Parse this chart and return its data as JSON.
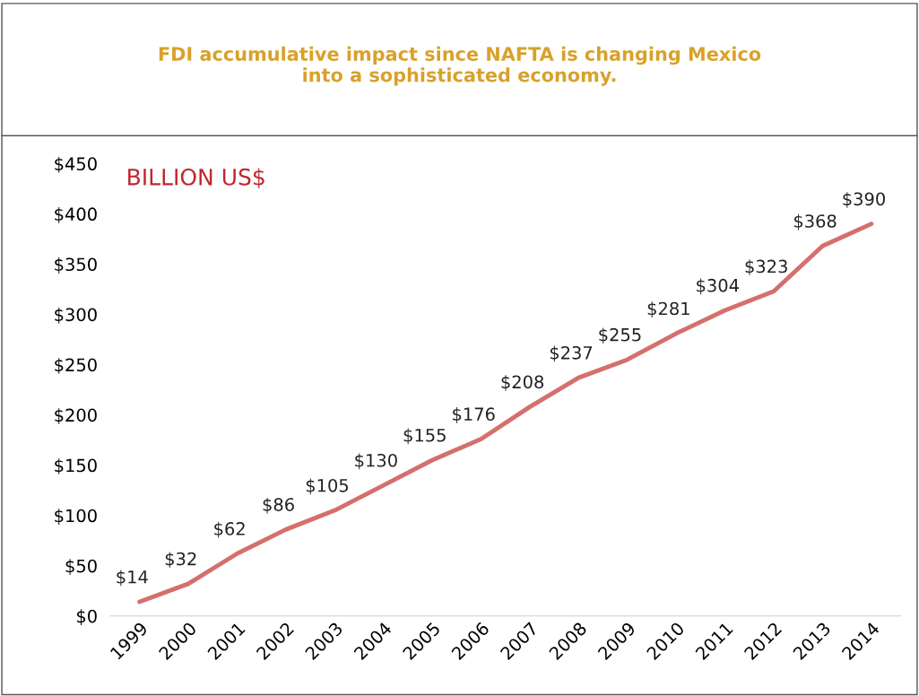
{
  "chart_data": {
    "type": "line",
    "title": "FDI accumulative impact since NAFTA is changing Mexico\ninto a sophisticated economy.",
    "annotations": [
      "BILLION US$"
    ],
    "categories": [
      "1999",
      "2000",
      "2001",
      "2002",
      "2003",
      "2004",
      "2005",
      "2006",
      "2007",
      "2008",
      "2009",
      "2010",
      "2011",
      "2012",
      "2013",
      "2014"
    ],
    "series": [
      {
        "color": "#d4706c",
        "values": [
          14,
          32,
          62,
          86,
          105,
          130,
          155,
          176,
          208,
          237,
          255,
          281,
          304,
          323,
          368,
          390
        ]
      }
    ],
    "value_labels": [
      "$14",
      "$32",
      "$62",
      "$86",
      "$105",
      "$130",
      "$155",
      "$176",
      "$208",
      "$237",
      "$255",
      "$281",
      "$304",
      "$323",
      "$368",
      "$390"
    ],
    "ylim": [
      0,
      450
    ],
    "yticks": [
      {
        "value": 0,
        "label": "$0"
      },
      {
        "value": 50,
        "label": "$50"
      },
      {
        "value": 100,
        "label": "$100"
      },
      {
        "value": 150,
        "label": "$150"
      },
      {
        "value": 200,
        "label": "$200"
      },
      {
        "value": 250,
        "label": "$250"
      },
      {
        "value": 300,
        "label": "$300"
      },
      {
        "value": 350,
        "label": "$350"
      },
      {
        "value": 400,
        "label": "$400"
      },
      {
        "value": 450,
        "label": "$450"
      }
    ],
    "grid": false,
    "legend": false,
    "marker": "none",
    "line_style": "solid"
  }
}
